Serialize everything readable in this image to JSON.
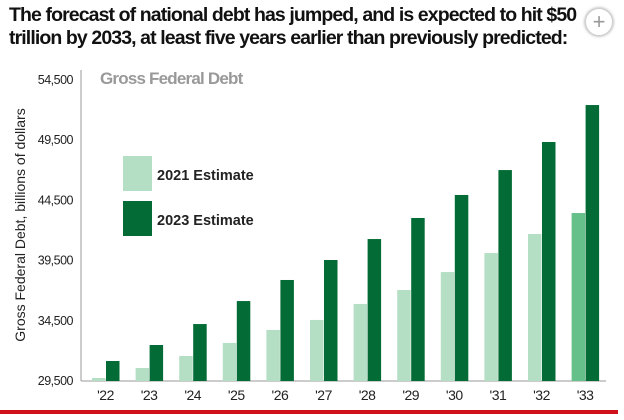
{
  "headline": "The forecast of national debt has jumped, and is expected to hit $50 trillion by 2033, at least five years earlier than previously predicted:",
  "zoom_icon": "plus-circle-icon",
  "chart_data": {
    "type": "bar",
    "title": "Gross Federal Debt",
    "xlabel": "",
    "ylabel": "Gross Federal Debt, billions of dollars",
    "ylim": [
      29500,
      54500
    ],
    "yticks": [
      "29,500",
      "34,500",
      "39,500",
      "44,500",
      "49,500",
      "54,500"
    ],
    "ytick_values": [
      29500,
      34500,
      39500,
      44500,
      49500,
      54500
    ],
    "categories": [
      "'22",
      "'23",
      "'24",
      "'25",
      "'26",
      "'27",
      "'28",
      "'29",
      "'30",
      "'31",
      "'32",
      "'33"
    ],
    "legend_position": "upper-left",
    "series": [
      {
        "name": "2021 Estimate",
        "color": "#b5dfc5",
        "values": [
          29750,
          30580,
          31580,
          32660,
          33740,
          34570,
          35900,
          37060,
          38550,
          40130,
          41710,
          43450
        ]
      },
      {
        "name": "2023 Estimate",
        "color": "#036b35",
        "values": [
          31160,
          32490,
          34230,
          36140,
          37890,
          39550,
          41290,
          43040,
          44950,
          47020,
          49350,
          52420
        ]
      }
    ]
  }
}
